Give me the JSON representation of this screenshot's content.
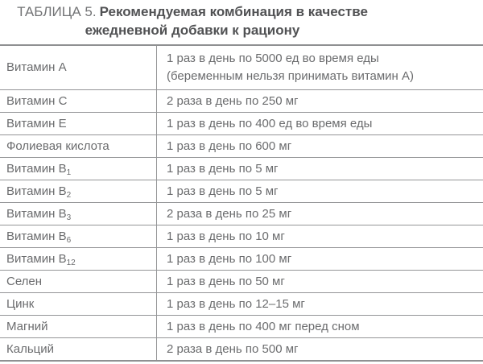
{
  "title": {
    "prefix": "ТАБЛИЦА 5.",
    "line1": "Рекомендуемая комбинация в качестве",
    "line2": "ежедневной добавки к рациону"
  },
  "table": {
    "rows": [
      {
        "name": "Витамин А",
        "sub": "",
        "dose": "1 раз в день по 5000 ед во время еды",
        "dose2": "(беременным нельзя принимать витамин А)"
      },
      {
        "name": "Витамин С",
        "sub": "",
        "dose": "2 раза в день по 250 мг",
        "dose2": ""
      },
      {
        "name": "Витамин Е",
        "sub": "",
        "dose": "1 раз в день по 400 ед во время еды",
        "dose2": ""
      },
      {
        "name": "Фолиевая кислота",
        "sub": "",
        "dose": "1 раз в день по 600 мг",
        "dose2": ""
      },
      {
        "name": "Витамин В",
        "sub": "1",
        "dose": "1 раз в день по 5 мг",
        "dose2": ""
      },
      {
        "name": "Витамин В",
        "sub": "2",
        "dose": "1 раз в день по 5 мг",
        "dose2": ""
      },
      {
        "name": "Витамин В",
        "sub": "3",
        "dose": "2 раза в день по 25 мг",
        "dose2": ""
      },
      {
        "name": "Витамин В",
        "sub": "6",
        "dose": "1 раз в день по 10 мг",
        "dose2": ""
      },
      {
        "name": "Витамин В",
        "sub": "12",
        "dose": "1 раз в день по 100 мг",
        "dose2": ""
      },
      {
        "name": "Селен",
        "sub": "",
        "dose": "1 раз в день по 50 мг",
        "dose2": ""
      },
      {
        "name": "Цинк",
        "sub": "",
        "dose": "1 раз в день по 12–15 мг",
        "dose2": ""
      },
      {
        "name": "Магний",
        "sub": "",
        "dose": "1 раз в день по 400 мг перед сном",
        "dose2": ""
      },
      {
        "name": "Кальций",
        "sub": "",
        "dose": "2 раза в день по 500 мг",
        "dose2": ""
      }
    ]
  },
  "colors": {
    "text": "#6b6c6e",
    "title_bold": "#515254",
    "border": "#8f9092",
    "background": "#ffffff"
  }
}
